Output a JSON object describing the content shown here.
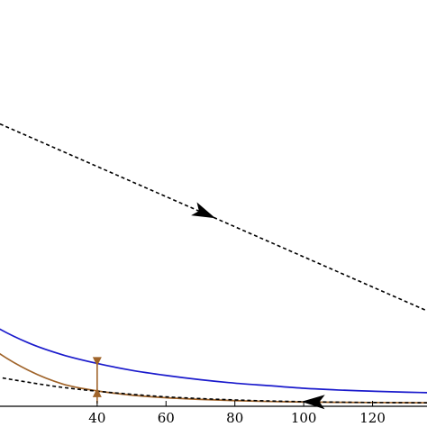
{
  "chart_data": {
    "type": "line",
    "title": "",
    "xlabel": "",
    "ylabel": "",
    "xlim": [
      0,
      140
    ],
    "ylim": [
      0,
      30
    ],
    "x_ticks": [
      40,
      60,
      80,
      100,
      120
    ],
    "x_tick_labels": [
      "40",
      "60",
      "80",
      "100",
      "120"
    ],
    "grid": false,
    "legend": "none",
    "series": [
      {
        "style": "dashed",
        "color": "#000000",
        "x": [
          0,
          140
        ],
        "y": [
          17.5,
          5.2
        ],
        "arrow": {
          "at_x": 71,
          "direction": "forward"
        }
      },
      {
        "style": "solid",
        "color": "#1a1acc",
        "x": [
          0,
          10,
          20,
          30,
          40,
          50,
          60,
          70,
          80,
          90,
          100,
          110,
          120,
          130,
          140
        ],
        "y": [
          6.1,
          4.7,
          3.7,
          3.0,
          2.5,
          2.1,
          1.8,
          1.55,
          1.35,
          1.2,
          1.05,
          0.95,
          0.88,
          0.82,
          0.78
        ]
      },
      {
        "style": "solid",
        "color": "#a0642a",
        "x": [
          0,
          10,
          20,
          30,
          40,
          50,
          60,
          70,
          80,
          90,
          100,
          110,
          120,
          130,
          140
        ],
        "y": [
          5.0,
          3.3,
          2.1,
          1.3,
          0.9,
          0.65,
          0.5,
          0.4,
          0.33,
          0.28,
          0.25,
          0.23,
          0.22,
          0.21,
          0.2
        ]
      },
      {
        "style": "dashed",
        "color": "#000000",
        "x": [
          0,
          10,
          20,
          30,
          40,
          50,
          60,
          70,
          80,
          90,
          100,
          110,
          120,
          130,
          140
        ],
        "y": [
          2.2,
          1.75,
          1.4,
          1.1,
          0.88,
          0.7,
          0.55,
          0.45,
          0.37,
          0.31,
          0.27,
          0.24,
          0.22,
          0.21,
          0.2
        ],
        "arrow": {
          "at_x": 103,
          "direction": "backward"
        }
      }
    ],
    "markers": [
      {
        "x": 40,
        "y_low": 0.9,
        "y_high": 2.5,
        "color": "#a0642a"
      }
    ]
  }
}
